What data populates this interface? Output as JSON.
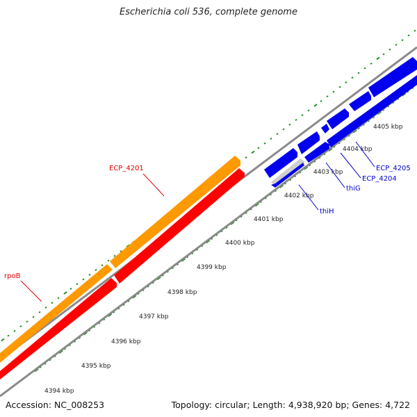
{
  "title": "Escherichia coli 536, complete genome",
  "footer": {
    "accession": "Accession: NC_008253",
    "summary": "Topology: circular; Length: 4,938,920 bp; Genes: 4,722"
  },
  "colors": {
    "backbone": "#8a8a8a",
    "ticks": "#1f8a1f",
    "orange_feature": "#ff9900",
    "red_feature": "#ff0000",
    "blue_feature": "#0000ee",
    "grey_feature": "#cfcfcf",
    "label_red": "#dd0000",
    "label_blue": "#0000cc"
  },
  "scale_labels": [
    "4394 kbp",
    "4395 kbp",
    "4396 kbp",
    "4397 kbp",
    "4398 kbp",
    "4399 kbp",
    "4400 kbp",
    "4401 kbp",
    "4402 kbp",
    "4403 kbp",
    "4404 kbp",
    "4405 kbp"
  ],
  "gene_labels": {
    "rpoB": "rpoB",
    "ECP_4201": "ECP_4201",
    "thiH": "thiH",
    "thiG": "thiG",
    "ECP_4204": "ECP_4204",
    "ECP_4205": "ECP_4205"
  }
}
